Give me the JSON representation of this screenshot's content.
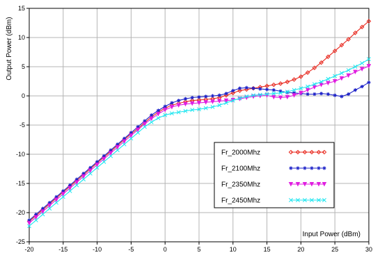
{
  "chart_data": {
    "type": "line",
    "title": "",
    "xlabel": "Input Power (dBm)",
    "ylabel": "Output Power (dBm)",
    "xlim": [
      -20,
      30
    ],
    "ylim": [
      -25,
      15
    ],
    "xticks": [
      -20,
      -15,
      -10,
      -5,
      0,
      5,
      10,
      15,
      20,
      25,
      30
    ],
    "yticks": [
      -25,
      -20,
      -15,
      -10,
      -5,
      0,
      5,
      10,
      15
    ],
    "grid": true,
    "legend_position": "bottom-right",
    "series": [
      {
        "name": "Fr_2000Mhz",
        "color": "#e8281e",
        "marker": "diamond",
        "x": [
          -20,
          -19,
          -18,
          -17,
          -16,
          -15,
          -14,
          -13,
          -12,
          -11,
          -10,
          -9,
          -8,
          -7,
          -6,
          -5,
          -4,
          -3,
          -2,
          -1,
          0,
          1,
          2,
          3,
          4,
          5,
          6,
          7,
          8,
          9,
          10,
          11,
          12,
          13,
          14,
          15,
          16,
          17,
          18,
          19,
          20,
          21,
          22,
          23,
          24,
          25,
          26,
          27,
          28,
          29,
          30
        ],
        "values": [
          -21.5,
          -20.5,
          -19.5,
          -18.5,
          -17.5,
          -16.5,
          -15.5,
          -14.5,
          -13.5,
          -12.5,
          -11.5,
          -10.5,
          -9.5,
          -8.5,
          -7.5,
          -6.5,
          -5.6,
          -4.6,
          -3.6,
          -2.8,
          -2.1,
          -1.6,
          -1.3,
          -1.0,
          -0.8,
          -0.7,
          -0.6,
          -0.5,
          -0.3,
          0.1,
          0.5,
          0.9,
          1.1,
          1.3,
          1.5,
          1.7,
          1.9,
          2.1,
          2.4,
          2.8,
          3.3,
          4.0,
          4.8,
          5.7,
          6.7,
          7.7,
          8.7,
          9.7,
          10.8,
          11.8,
          12.8
        ]
      },
      {
        "name": "Fr_2100Mhz",
        "color": "#1f24c8",
        "marker": "star",
        "x": [
          -20,
          -19,
          -18,
          -17,
          -16,
          -15,
          -14,
          -13,
          -12,
          -11,
          -10,
          -9,
          -8,
          -7,
          -6,
          -5,
          -4,
          -3,
          -2,
          -1,
          0,
          1,
          2,
          3,
          4,
          5,
          6,
          7,
          8,
          9,
          10,
          11,
          12,
          13,
          14,
          15,
          16,
          17,
          18,
          19,
          20,
          21,
          22,
          23,
          24,
          25,
          26,
          27,
          28,
          29,
          30
        ],
        "values": [
          -21.3,
          -20.3,
          -19.3,
          -18.3,
          -17.3,
          -16.3,
          -15.3,
          -14.3,
          -13.3,
          -12.3,
          -11.3,
          -10.3,
          -9.3,
          -8.3,
          -7.3,
          -6.3,
          -5.3,
          -4.3,
          -3.3,
          -2.5,
          -1.8,
          -1.2,
          -0.8,
          -0.5,
          -0.3,
          -0.2,
          -0.1,
          0.0,
          0.1,
          0.4,
          0.9,
          1.3,
          1.4,
          1.3,
          1.2,
          1.1,
          1.0,
          0.8,
          0.6,
          0.5,
          0.4,
          0.3,
          0.3,
          0.4,
          0.3,
          0.1,
          -0.1,
          0.3,
          1.0,
          1.6,
          2.3
        ]
      },
      {
        "name": "Fr_2350Mhz",
        "color": "#e01ee0",
        "marker": "triangle-down",
        "x": [
          -20,
          -19,
          -18,
          -17,
          -16,
          -15,
          -14,
          -13,
          -12,
          -11,
          -10,
          -9,
          -8,
          -7,
          -6,
          -5,
          -4,
          -3,
          -2,
          -1,
          0,
          1,
          2,
          3,
          4,
          5,
          6,
          7,
          8,
          9,
          10,
          11,
          12,
          13,
          14,
          15,
          16,
          17,
          18,
          19,
          20,
          21,
          22,
          23,
          24,
          25,
          26,
          27,
          28,
          29,
          30
        ],
        "values": [
          -21.8,
          -20.8,
          -19.8,
          -18.8,
          -17.8,
          -16.8,
          -15.8,
          -14.8,
          -13.8,
          -12.8,
          -11.8,
          -10.8,
          -9.8,
          -8.8,
          -7.8,
          -6.8,
          -5.8,
          -4.8,
          -3.9,
          -3.1,
          -2.4,
          -1.9,
          -1.6,
          -1.4,
          -1.3,
          -1.2,
          -1.1,
          -1.0,
          -0.9,
          -0.8,
          -0.7,
          -0.5,
          -0.3,
          -0.1,
          0.0,
          0.1,
          -0.2,
          -0.3,
          -0.2,
          0.1,
          0.5,
          1.0,
          1.5,
          1.9,
          2.2,
          2.5,
          3.0,
          3.5,
          4.1,
          4.6,
          5.1
        ]
      },
      {
        "name": "Fr_2450Mhz",
        "color": "#1ee6f0",
        "marker": "cross",
        "x": [
          -20,
          -19,
          -18,
          -17,
          -16,
          -15,
          -14,
          -13,
          -12,
          -11,
          -10,
          -9,
          -8,
          -7,
          -6,
          -5,
          -4,
          -3,
          -2,
          -1,
          0,
          1,
          2,
          3,
          4,
          5,
          6,
          7,
          8,
          9,
          10,
          11,
          12,
          13,
          14,
          15,
          16,
          17,
          18,
          19,
          20,
          21,
          22,
          23,
          24,
          25,
          26,
          27,
          28,
          29,
          30
        ],
        "values": [
          -22.3,
          -21.3,
          -20.3,
          -19.3,
          -18.3,
          -17.3,
          -16.3,
          -15.3,
          -14.3,
          -13.3,
          -12.3,
          -11.3,
          -10.3,
          -9.3,
          -8.3,
          -7.3,
          -6.3,
          -5.3,
          -4.5,
          -3.8,
          -3.3,
          -3.0,
          -2.8,
          -2.6,
          -2.4,
          -2.3,
          -2.1,
          -1.9,
          -1.6,
          -1.2,
          -0.8,
          -0.4,
          -0.1,
          0.1,
          0.2,
          0.3,
          0.4,
          0.5,
          0.7,
          1.0,
          1.3,
          1.6,
          2.0,
          2.4,
          2.9,
          3.4,
          3.9,
          4.4,
          5.0,
          5.6,
          6.3
        ]
      }
    ]
  }
}
